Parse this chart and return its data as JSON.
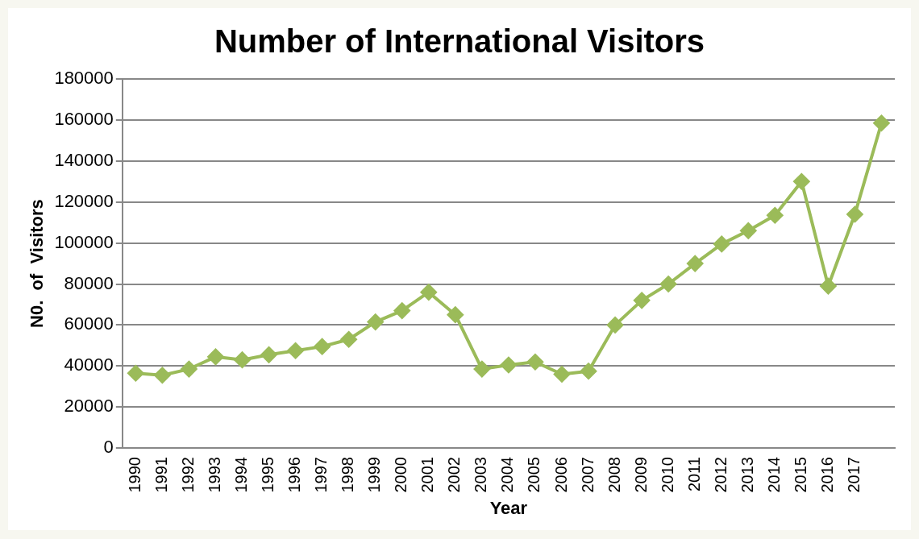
{
  "chart_data": {
    "type": "line",
    "title": "Number of International Visitors",
    "xlabel": "Year",
    "ylabel": "N0.  of  Visitors",
    "categories": [
      "1990",
      "1991",
      "1992",
      "1993",
      "1994",
      "1995",
      "1996",
      "1997",
      "1998",
      "1999",
      "2000",
      "2001",
      "2002",
      "2003",
      "2004",
      "2005",
      "2006",
      "2007",
      "2008",
      "2009",
      "2010",
      "2011",
      "2012",
      "2013",
      "2014",
      "2015",
      "2016",
      "2017",
      null
    ],
    "series": [
      {
        "color": "#9bbb59",
        "values": [
          36500,
          35500,
          38500,
          44500,
          43000,
          45500,
          47500,
          49500,
          53000,
          61500,
          67000,
          76000,
          65000,
          38500,
          40500,
          42000,
          36000,
          37500,
          60000,
          72000,
          80000,
          90000,
          99500,
          106000,
          113500,
          130000,
          79000,
          114000,
          158500
        ]
      }
    ],
    "ylim": [
      0,
      180000
    ],
    "yticks": [
      0,
      20000,
      40000,
      60000,
      80000,
      100000,
      120000,
      140000,
      160000,
      180000
    ],
    "grid": "y",
    "legend": false,
    "marker": "diamond",
    "line_style": "solid"
  }
}
